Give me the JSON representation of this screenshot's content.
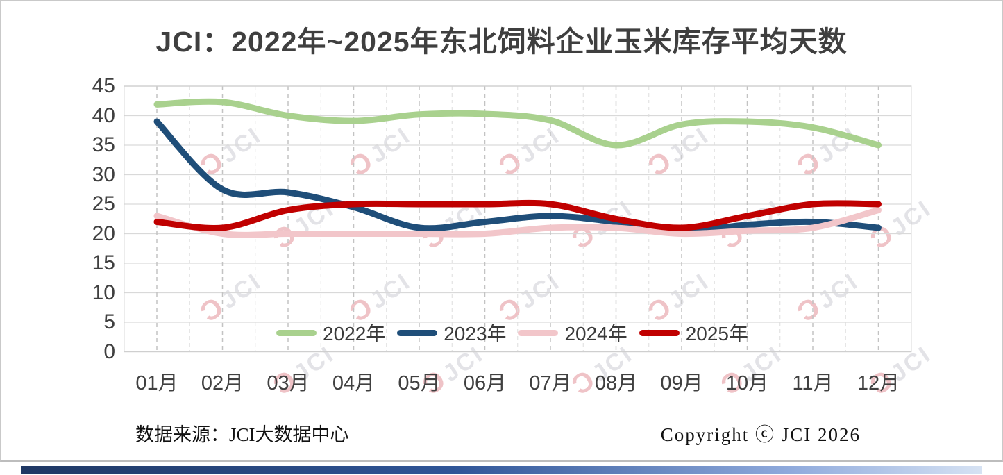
{
  "title": "JCI：2022年~2025年东北饲料企业玉米库存平均天数",
  "footer": {
    "source": "数据来源：JCI大数据中心",
    "copyright": "Copyright ⓒ JCI 2026"
  },
  "watermark": {
    "logo_mark": "Ɔ",
    "logo_text": "JCI"
  },
  "accent_bar_colors": [
    "#1F3864",
    "#2F5597",
    "#8FAADC",
    "#D6E2F3"
  ],
  "chart_data": {
    "type": "line",
    "title": "JCI：2022年~2025年东北饲料企业玉米库存平均天数",
    "xlabel": "",
    "ylabel": "",
    "categories": [
      "01月",
      "02月",
      "03月",
      "04月",
      "05月",
      "06月",
      "07月",
      "08月",
      "09月",
      "10月",
      "11月",
      "12月"
    ],
    "series": [
      {
        "name": "2022年",
        "color": "#A9D18E",
        "values": [
          41.9,
          42.3,
          40.0,
          39.1,
          40.2,
          40.3,
          39.2,
          35.0,
          38.5,
          39.0,
          38.0,
          35.0
        ]
      },
      {
        "name": "2023年",
        "color": "#1F4E79",
        "values": [
          39.0,
          27.5,
          27.0,
          24.5,
          21.0,
          22.0,
          23.0,
          22.0,
          20.5,
          21.5,
          22.0,
          21.0
        ]
      },
      {
        "name": "2024年",
        "color": "#F2C6CA",
        "values": [
          23.0,
          20.0,
          20.0,
          20.0,
          20.0,
          20.0,
          21.0,
          21.0,
          20.0,
          20.5,
          21.0,
          24.0
        ]
      },
      {
        "name": "2025年",
        "color": "#C00000",
        "values": [
          22.0,
          21.0,
          24.0,
          25.0,
          25.0,
          25.0,
          25.0,
          22.5,
          21.0,
          23.0,
          25.0,
          25.0
        ]
      }
    ],
    "ylim": [
      0,
      45
    ],
    "yticks": [
      0,
      5,
      10,
      15,
      20,
      25,
      30,
      35,
      40,
      45
    ],
    "grid": true,
    "legend_position": "bottom-inside"
  }
}
